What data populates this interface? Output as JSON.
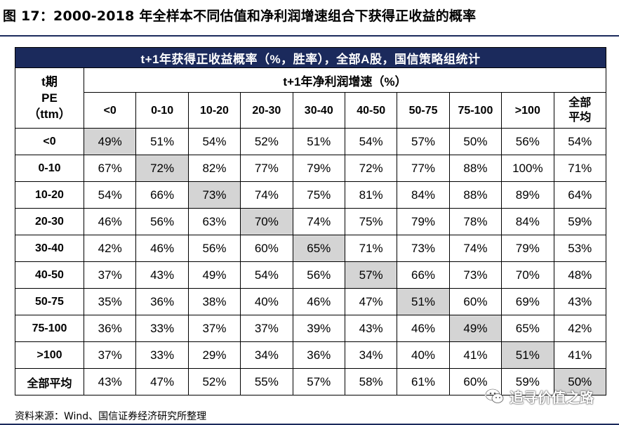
{
  "figure_title": "图 17：2000-2018 年全样本不同估值和净利润增速组合下获得正收益的概率",
  "table": {
    "band_title": "t+1年获得正收益概率（%，胜率），全部A股，国信策略组统计",
    "corner_label_lines": [
      "t期",
      "PE",
      "（ttm）"
    ],
    "column_group_label": "t+1年净利润增速（%）",
    "column_headers": [
      [
        "<0"
      ],
      [
        "0-10"
      ],
      [
        "10-20"
      ],
      [
        "20-30"
      ],
      [
        "30-40"
      ],
      [
        "40-50"
      ],
      [
        "50-75"
      ],
      [
        "75-100"
      ],
      [
        ">100"
      ],
      [
        "全部",
        "平均"
      ]
    ],
    "rows": [
      {
        "label": "<0",
        "values": [
          "49%",
          "51%",
          "54%",
          "52%",
          "51%",
          "54%",
          "57%",
          "50%",
          "56%",
          "54%"
        ]
      },
      {
        "label": "0-10",
        "values": [
          "67%",
          "72%",
          "82%",
          "77%",
          "79%",
          "72%",
          "77%",
          "88%",
          "100%",
          "71%"
        ]
      },
      {
        "label": "10-20",
        "values": [
          "54%",
          "66%",
          "73%",
          "74%",
          "75%",
          "81%",
          "84%",
          "88%",
          "89%",
          "64%"
        ]
      },
      {
        "label": "20-30",
        "values": [
          "46%",
          "56%",
          "63%",
          "70%",
          "74%",
          "75%",
          "79%",
          "78%",
          "84%",
          "59%"
        ]
      },
      {
        "label": "30-40",
        "values": [
          "42%",
          "46%",
          "56%",
          "60%",
          "65%",
          "71%",
          "73%",
          "74%",
          "79%",
          "53%"
        ]
      },
      {
        "label": "40-50",
        "values": [
          "37%",
          "43%",
          "49%",
          "54%",
          "56%",
          "57%",
          "66%",
          "73%",
          "70%",
          "48%"
        ]
      },
      {
        "label": "50-75",
        "values": [
          "35%",
          "36%",
          "38%",
          "40%",
          "46%",
          "47%",
          "51%",
          "60%",
          "69%",
          "43%"
        ]
      },
      {
        "label": "75-100",
        "values": [
          "36%",
          "33%",
          "37%",
          "37%",
          "39%",
          "43%",
          "46%",
          "49%",
          "65%",
          "42%"
        ]
      },
      {
        "label": ">100",
        "values": [
          "37%",
          "33%",
          "29%",
          "34%",
          "36%",
          "34%",
          "40%",
          "41%",
          "51%",
          "41%"
        ]
      },
      {
        "label": "全部平均",
        "values": [
          "43%",
          "47%",
          "52%",
          "55%",
          "57%",
          "58%",
          "61%",
          "60%",
          "59%",
          "50%"
        ]
      }
    ]
  },
  "source_note": "资料来源：Wind、国信证券经济研究所整理",
  "watermark": {
    "text": "追寻价值之路",
    "icon": "wechat-icon"
  },
  "colors": {
    "header_band": "#1b2a5c",
    "highlight_cell": "#d4d4d4"
  }
}
